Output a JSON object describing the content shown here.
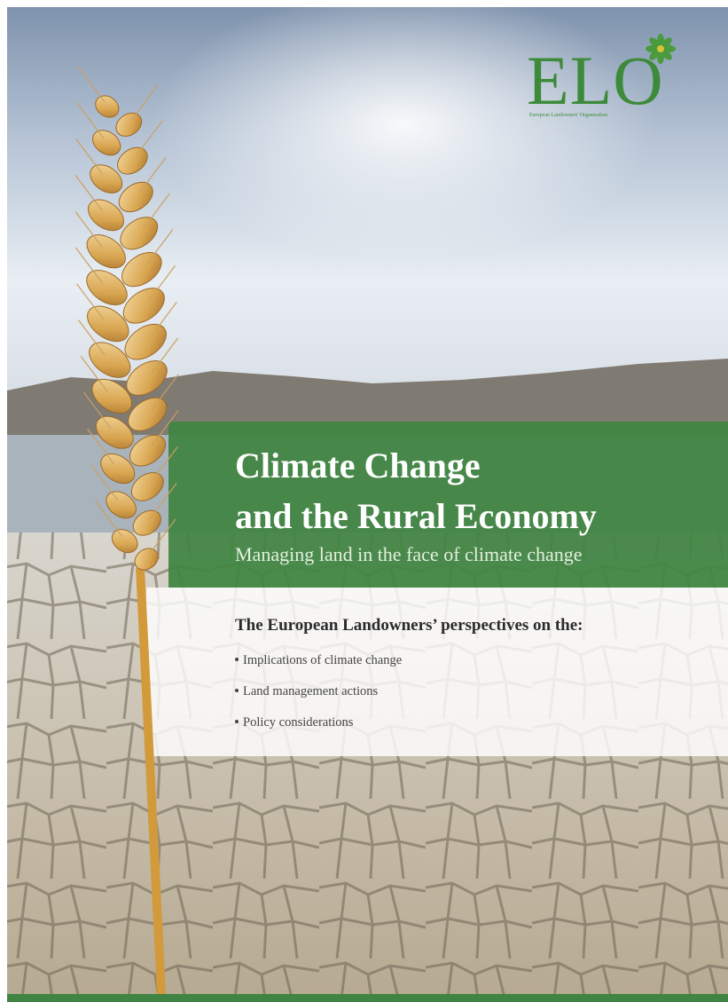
{
  "logo": {
    "mark": "ELO",
    "tagline": "European Landowners' Organization"
  },
  "cover": {
    "title_lines": [
      "Climate Change",
      "and the Rural Economy"
    ],
    "subtitle": "Managing land in the face of climate change",
    "perspectives": {
      "heading": "The European Landowners’ perspectives on the:",
      "items": [
        "Implications of climate change",
        "Land management actions",
        "Policy considerations"
      ]
    }
  }
}
